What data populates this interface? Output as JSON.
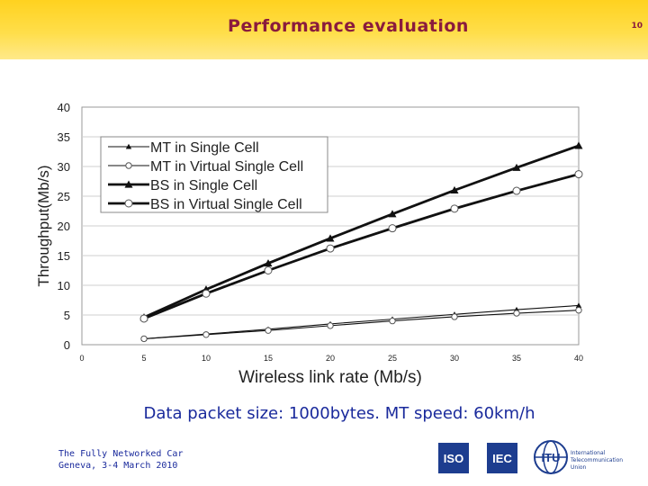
{
  "slide": {
    "title": "Performance evaluation",
    "page_number": "10",
    "caption": "Data packet size: 1000bytes. MT speed: 60km/h",
    "footer_line1": "The Fully Networked Car",
    "footer_line2": "Geneva, 3-4 March 2010",
    "logos": [
      "ISO",
      "IEC",
      "ITU"
    ],
    "itu_text": [
      "International",
      "Telecommunication",
      "Union"
    ]
  },
  "chart_data": {
    "type": "line",
    "title": "",
    "xlabel": "Wireless link rate (Mb/s)",
    "ylabel": "Throughput(Mb/s)",
    "x": [
      5,
      10,
      15,
      20,
      25,
      30,
      35,
      40
    ],
    "x_ticks": [
      0,
      5,
      10,
      15,
      20,
      25,
      30,
      35,
      40
    ],
    "y_ticks": [
      0,
      5,
      10,
      15,
      20,
      25,
      30,
      35,
      40
    ],
    "xlim": [
      0,
      40
    ],
    "ylim": [
      0,
      40
    ],
    "grid": true,
    "legend_position": "top-left",
    "series": [
      {
        "name": "MT in Single Cell",
        "values": [
          1.0,
          1.8,
          2.6,
          3.5,
          4.3,
          5.1,
          5.9,
          6.6
        ],
        "marker": "triangle",
        "weight": "thin"
      },
      {
        "name": "MT in Virtual Single Cell",
        "values": [
          1.0,
          1.7,
          2.4,
          3.2,
          4.0,
          4.7,
          5.3,
          5.8
        ],
        "marker": "circle",
        "weight": "thin"
      },
      {
        "name": "BS in Single Cell",
        "values": [
          4.6,
          9.3,
          13.7,
          17.9,
          22.0,
          26.0,
          29.8,
          33.5
        ],
        "marker": "triangle",
        "weight": "thick"
      },
      {
        "name": "BS in Virtual Single Cell",
        "values": [
          4.4,
          8.6,
          12.5,
          16.2,
          19.6,
          22.9,
          25.9,
          28.7
        ],
        "marker": "circle",
        "weight": "thick"
      }
    ]
  }
}
